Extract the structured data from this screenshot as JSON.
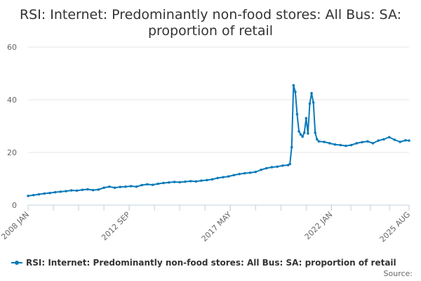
{
  "chart_data": {
    "type": "line",
    "title_lines": [
      "RSI: Internet: Predominantly non-food stores: All Bus: SA:",
      "proportion of retail"
    ],
    "xlabel": "",
    "ylabel": "",
    "ylim": [
      0,
      60
    ],
    "y_ticks": [
      0,
      20,
      40,
      60
    ],
    "x_range": [
      "2008-01",
      "2025-08"
    ],
    "x_tick_labels": [
      {
        "date": "2008-01",
        "label": "2008 JAN"
      },
      {
        "date": "2012-09",
        "label": "2012 SEP"
      },
      {
        "date": "2017-05",
        "label": "2017 MAY"
      },
      {
        "date": "2022-01",
        "label": "2022 JAN"
      },
      {
        "date": "2025-08",
        "label": "2025 AUG"
      }
    ],
    "grid": "horizontal",
    "legend_position": "bottom",
    "source_label": "Source:",
    "series": [
      {
        "name": "RSI: Internet: Predominantly non-food stores: All Bus: SA: proportion of retail",
        "color": "#0a7ab8",
        "points": [
          [
            "2008-01",
            3.5
          ],
          [
            "2008-04",
            3.8
          ],
          [
            "2008-07",
            4.1
          ],
          [
            "2008-10",
            4.4
          ],
          [
            "2009-01",
            4.6
          ],
          [
            "2009-04",
            4.9
          ],
          [
            "2009-07",
            5.1
          ],
          [
            "2009-10",
            5.3
          ],
          [
            "2010-01",
            5.6
          ],
          [
            "2010-04",
            5.5
          ],
          [
            "2010-07",
            5.8
          ],
          [
            "2010-10",
            6.0
          ],
          [
            "2011-01",
            5.7
          ],
          [
            "2011-04",
            5.9
          ],
          [
            "2011-07",
            6.6
          ],
          [
            "2011-10",
            7.0
          ],
          [
            "2012-01",
            6.6
          ],
          [
            "2012-04",
            6.9
          ],
          [
            "2012-07",
            7.0
          ],
          [
            "2012-10",
            7.2
          ],
          [
            "2013-01",
            7.0
          ],
          [
            "2013-04",
            7.6
          ],
          [
            "2013-07",
            7.9
          ],
          [
            "2013-10",
            7.7
          ],
          [
            "2014-01",
            8.1
          ],
          [
            "2014-04",
            8.4
          ],
          [
            "2014-07",
            8.6
          ],
          [
            "2014-10",
            8.8
          ],
          [
            "2015-01",
            8.7
          ],
          [
            "2015-04",
            8.9
          ],
          [
            "2015-07",
            9.1
          ],
          [
            "2015-10",
            9.0
          ],
          [
            "2016-01",
            9.3
          ],
          [
            "2016-04",
            9.5
          ],
          [
            "2016-07",
            9.8
          ],
          [
            "2016-10",
            10.3
          ],
          [
            "2017-01",
            10.6
          ],
          [
            "2017-04",
            10.9
          ],
          [
            "2017-07",
            11.4
          ],
          [
            "2017-10",
            11.8
          ],
          [
            "2018-01",
            12.1
          ],
          [
            "2018-04",
            12.3
          ],
          [
            "2018-07",
            12.6
          ],
          [
            "2018-10",
            13.4
          ],
          [
            "2019-01",
            14.0
          ],
          [
            "2019-04",
            14.4
          ],
          [
            "2019-07",
            14.6
          ],
          [
            "2019-10",
            15.0
          ],
          [
            "2020-01",
            15.2
          ],
          [
            "2020-02",
            15.6
          ],
          [
            "2020-03",
            22.0
          ],
          [
            "2020-04",
            45.5
          ],
          [
            "2020-05",
            43.0
          ],
          [
            "2020-06",
            34.5
          ],
          [
            "2020-07",
            28.0
          ],
          [
            "2020-08",
            26.8
          ],
          [
            "2020-09",
            26.0
          ],
          [
            "2020-10",
            27.5
          ],
          [
            "2020-11",
            33.0
          ],
          [
            "2020-12",
            27.2
          ],
          [
            "2021-01",
            38.5
          ],
          [
            "2021-02",
            42.5
          ],
          [
            "2021-03",
            39.0
          ],
          [
            "2021-04",
            27.5
          ],
          [
            "2021-05",
            25.0
          ],
          [
            "2021-06",
            24.2
          ],
          [
            "2021-09",
            24.0
          ],
          [
            "2021-12",
            23.5
          ],
          [
            "2022-03",
            23.0
          ],
          [
            "2022-06",
            22.8
          ],
          [
            "2022-09",
            22.5
          ],
          [
            "2022-12",
            22.8
          ],
          [
            "2023-03",
            23.5
          ],
          [
            "2023-06",
            23.9
          ],
          [
            "2023-09",
            24.2
          ],
          [
            "2023-12",
            23.5
          ],
          [
            "2024-03",
            24.5
          ],
          [
            "2024-06",
            25.0
          ],
          [
            "2024-09",
            25.8
          ],
          [
            "2024-12",
            24.8
          ],
          [
            "2025-03",
            24.0
          ],
          [
            "2025-06",
            24.6
          ],
          [
            "2025-08",
            24.5
          ]
        ]
      }
    ]
  }
}
